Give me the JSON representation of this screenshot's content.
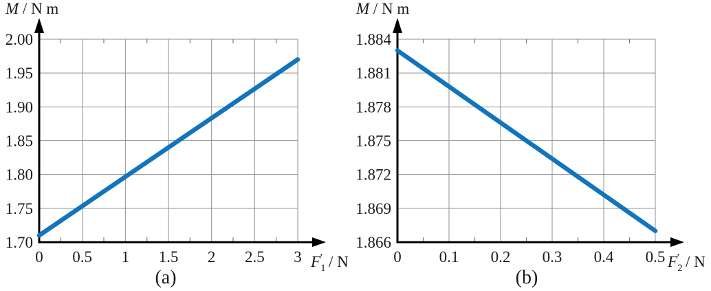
{
  "figure": {
    "background": "#ffffff",
    "line_color": "#1274bc",
    "grid_color": "#8f8f8f",
    "minor_tick_color": "#777777",
    "axis_color": "#000000",
    "text_color": "#1a1a1a"
  },
  "chart_data": [
    {
      "id": "a",
      "type": "line",
      "caption": "(a)",
      "title": "",
      "ylabel": {
        "symbol": "M",
        "unit": " / N m",
        "text": "M / N m"
      },
      "xlabel": {
        "symbol": "F",
        "subscript": "1",
        "prime": "′",
        "unit": " / N",
        "text": "F1′ / N"
      },
      "xlim": [
        0,
        3
      ],
      "ylim": [
        1.7,
        2.0
      ],
      "x_ticks": {
        "values": [
          0,
          0.5,
          1,
          1.5,
          2,
          2.5,
          3
        ],
        "labels": [
          "0",
          "0.5",
          "1",
          "1.5",
          "2",
          "2.5",
          "3"
        ]
      },
      "y_ticks": {
        "values": [
          1.7,
          1.75,
          1.8,
          1.85,
          1.9,
          1.95,
          2.0
        ],
        "labels": [
          "1.70",
          "1.75",
          "1.80",
          "1.85",
          "1.90",
          "1.95",
          "2.00"
        ]
      },
      "grid": true,
      "legend": "none",
      "series": [
        {
          "name": "M vs F1'",
          "x": [
            0,
            3
          ],
          "y": [
            1.71,
            1.97
          ]
        }
      ]
    },
    {
      "id": "b",
      "type": "line",
      "caption": "(b)",
      "title": "",
      "ylabel": {
        "symbol": "M",
        "unit": " / N m",
        "text": "M / N m"
      },
      "xlabel": {
        "symbol": "F",
        "subscript": "2",
        "prime": "′",
        "unit": " / N",
        "text": "F2′ / N"
      },
      "xlim": [
        0,
        0.5
      ],
      "ylim": [
        1.866,
        1.884
      ],
      "x_ticks": {
        "values": [
          0,
          0.1,
          0.2,
          0.3,
          0.4,
          0.5
        ],
        "labels": [
          "0",
          "0.1",
          "0.2",
          "0.3",
          "0.4",
          "0.5"
        ]
      },
      "y_ticks": {
        "values": [
          1.866,
          1.869,
          1.872,
          1.875,
          1.878,
          1.881,
          1.884
        ],
        "labels": [
          "1.866",
          "1.869",
          "1.872",
          "1.875",
          "1.878",
          "1.881",
          "1.884"
        ]
      },
      "grid": true,
      "legend": "none",
      "series": [
        {
          "name": "M vs F2'",
          "x": [
            0,
            0.5
          ],
          "y": [
            1.883,
            1.867
          ]
        }
      ]
    }
  ]
}
